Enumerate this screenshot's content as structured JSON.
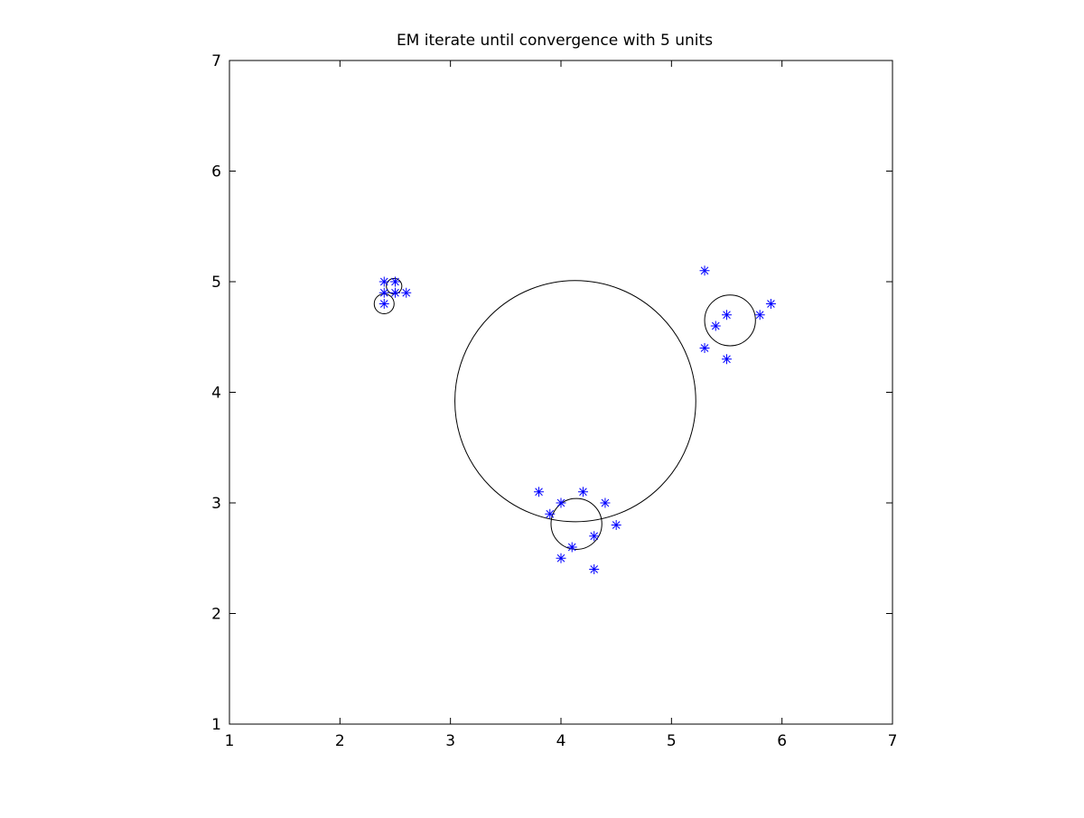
{
  "chart_data": {
    "type": "scatter",
    "title": "EM iterate until convergence with 5 units",
    "xlabel": "",
    "ylabel": "",
    "xlim": [
      1,
      7
    ],
    "ylim": [
      1,
      7
    ],
    "xticks": [
      1,
      2,
      3,
      4,
      5,
      6,
      7
    ],
    "yticks": [
      1,
      2,
      3,
      4,
      5,
      6,
      7
    ],
    "xtick_labels": [
      "1",
      "2",
      "3",
      "4",
      "5",
      "6",
      "7"
    ],
    "ytick_labels": [
      "1",
      "2",
      "3",
      "4",
      "5",
      "6",
      "7"
    ],
    "grid": false,
    "legend": "none",
    "marker": "asterisk",
    "marker_color": "#0000ff",
    "circle_color": "#000000",
    "points": [
      {
        "x": 2.4,
        "y": 5.0
      },
      {
        "x": 2.5,
        "y": 5.0
      },
      {
        "x": 2.4,
        "y": 4.9
      },
      {
        "x": 2.5,
        "y": 4.9
      },
      {
        "x": 2.6,
        "y": 4.9
      },
      {
        "x": 2.4,
        "y": 4.8
      },
      {
        "x": 5.3,
        "y": 5.1
      },
      {
        "x": 5.9,
        "y": 4.8
      },
      {
        "x": 5.8,
        "y": 4.7
      },
      {
        "x": 5.5,
        "y": 4.7
      },
      {
        "x": 5.4,
        "y": 4.6
      },
      {
        "x": 5.3,
        "y": 4.4
      },
      {
        "x": 5.5,
        "y": 4.3
      },
      {
        "x": 3.8,
        "y": 3.1
      },
      {
        "x": 4.2,
        "y": 3.1
      },
      {
        "x": 4.0,
        "y": 3.0
      },
      {
        "x": 4.4,
        "y": 3.0
      },
      {
        "x": 3.9,
        "y": 2.9
      },
      {
        "x": 4.5,
        "y": 2.8
      },
      {
        "x": 4.3,
        "y": 2.7
      },
      {
        "x": 4.1,
        "y": 2.6
      },
      {
        "x": 4.0,
        "y": 2.5
      },
      {
        "x": 4.3,
        "y": 2.4
      }
    ],
    "units": [
      {
        "cx": 4.13,
        "cy": 3.92,
        "r": 1.09
      },
      {
        "cx": 4.14,
        "cy": 2.81,
        "r": 0.23
      },
      {
        "cx": 5.53,
        "cy": 4.65,
        "r": 0.23
      },
      {
        "cx": 2.4,
        "cy": 4.8,
        "r": 0.09
      },
      {
        "cx": 2.49,
        "cy": 4.96,
        "r": 0.07
      }
    ]
  }
}
